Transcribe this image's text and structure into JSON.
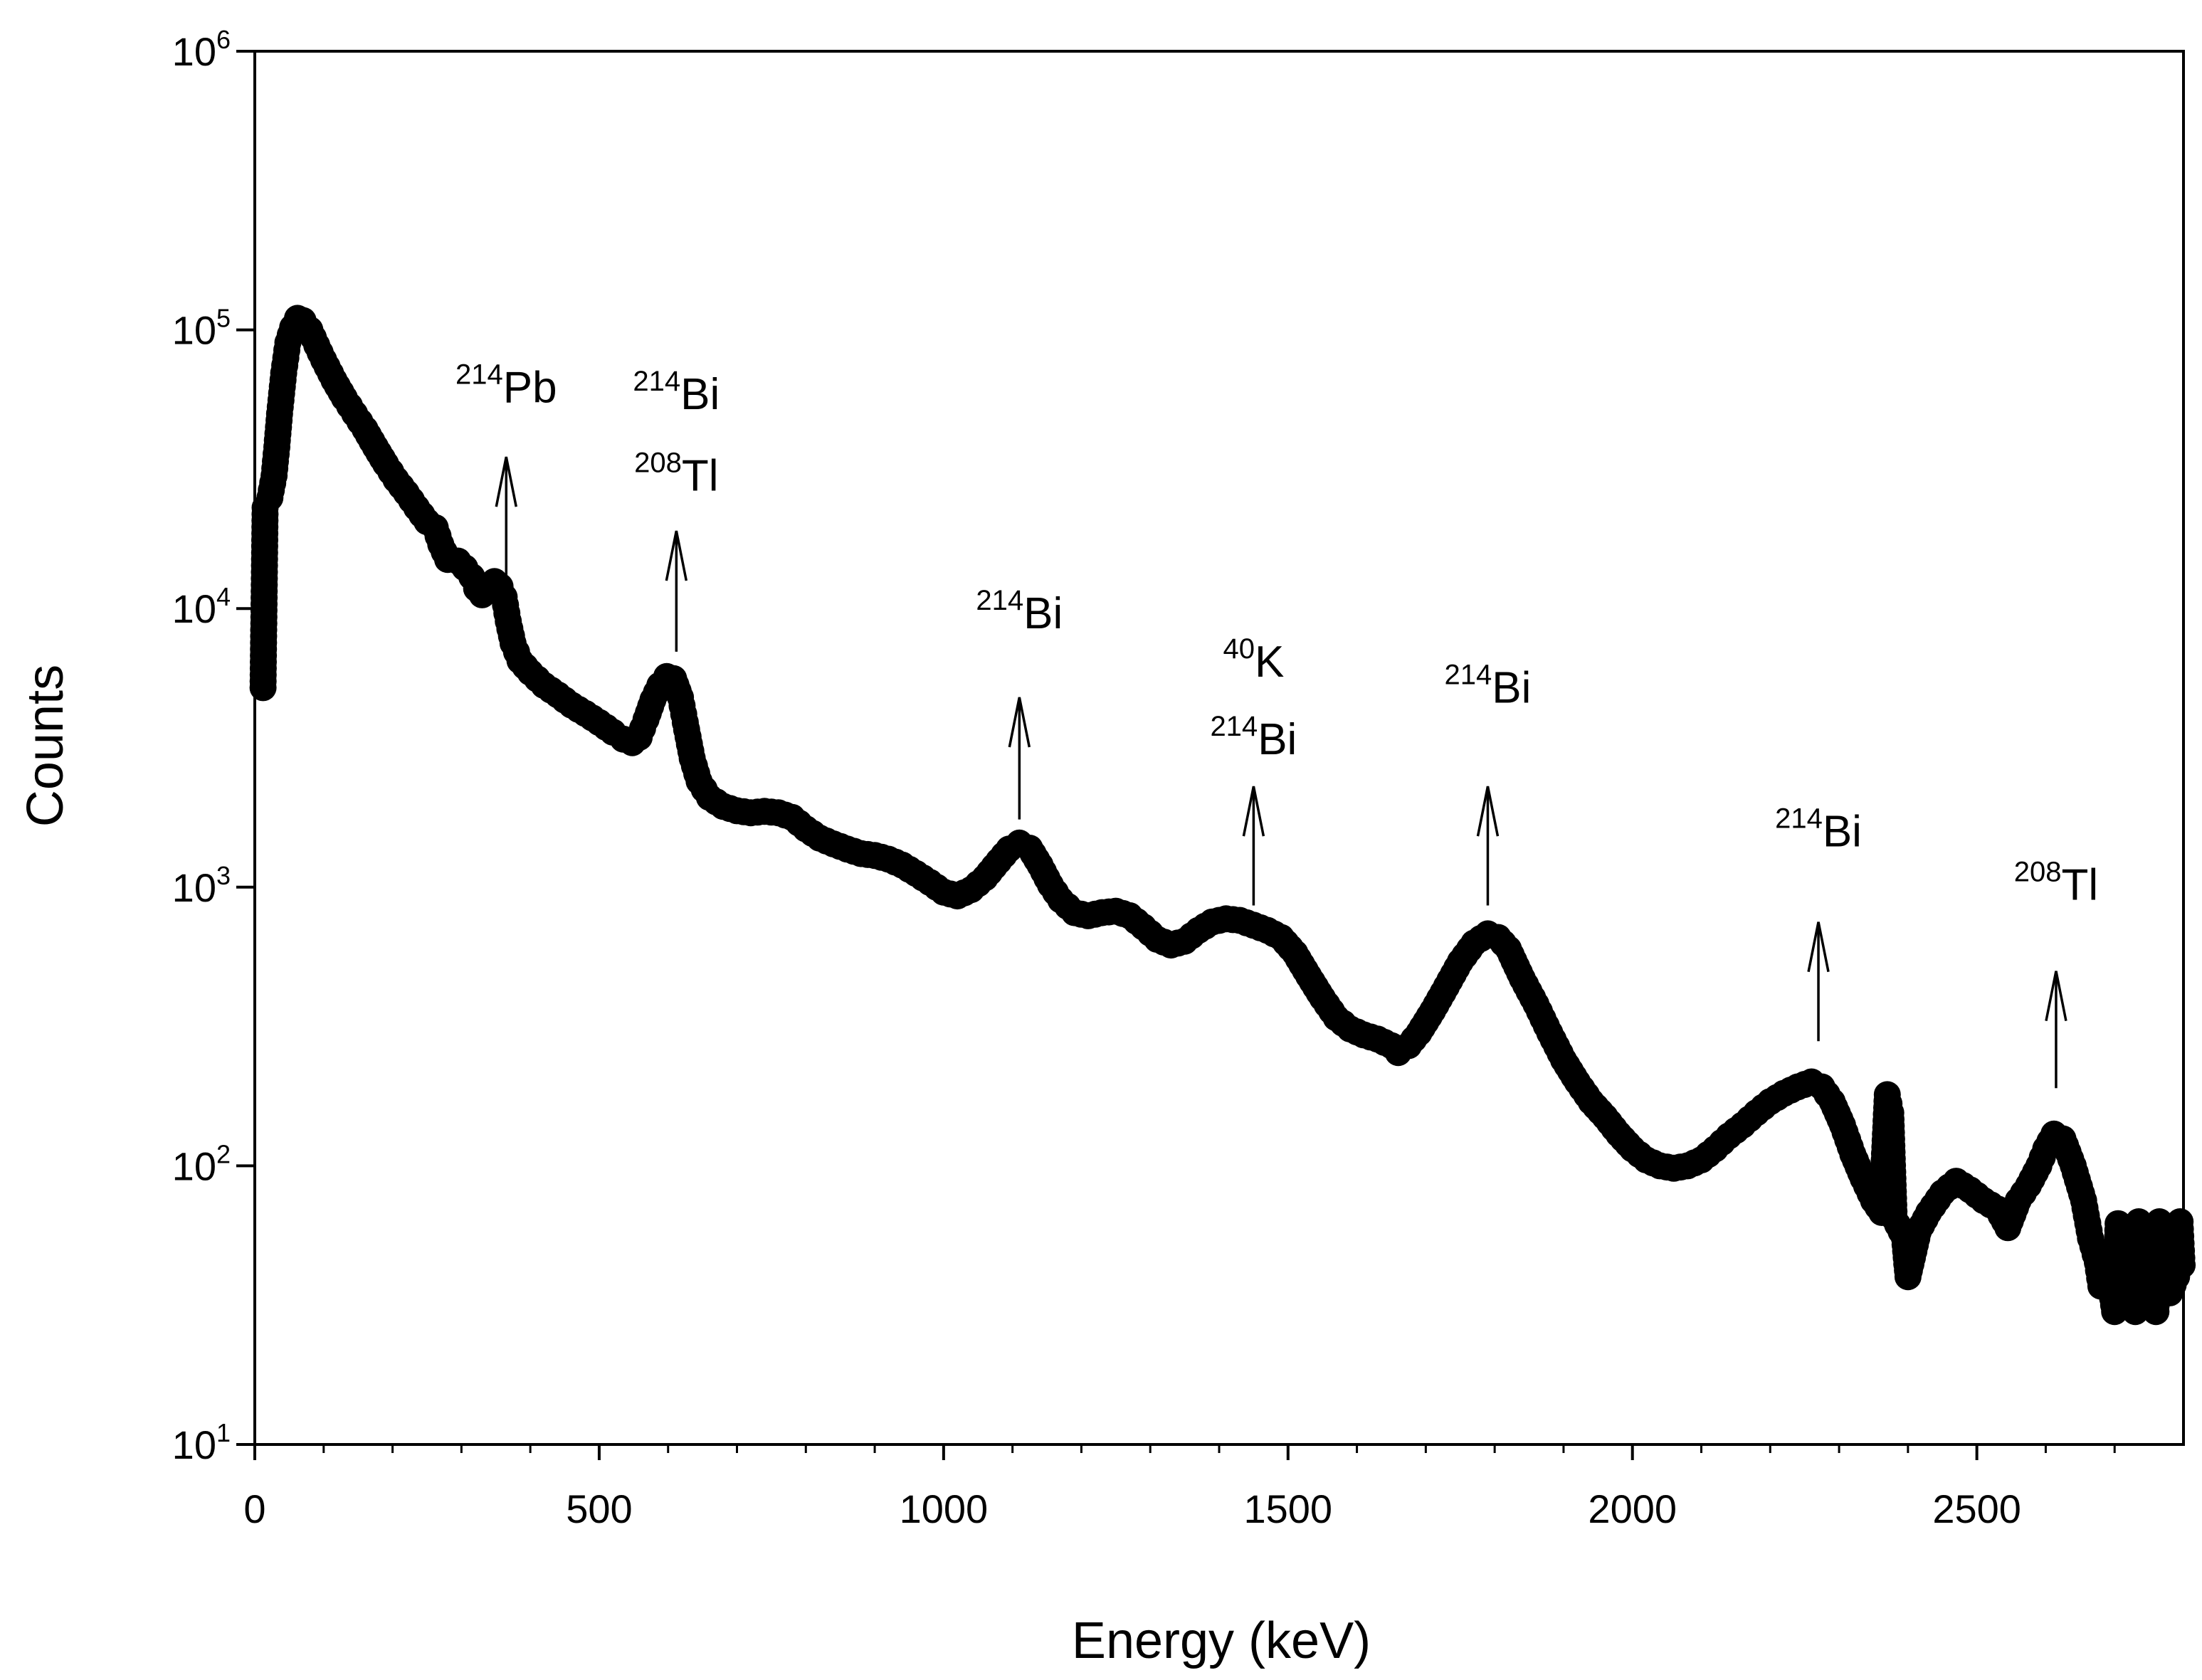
{
  "chart_data": {
    "type": "scatter",
    "title": "",
    "xlabel": "Energy (keV)",
    "ylabel": "Counts",
    "xlim": [
      0,
      2800
    ],
    "ylim": [
      10,
      1000000
    ],
    "yscale": "log",
    "grid": false,
    "marker_color": "#000000",
    "x_ticks": [
      {
        "value": 0,
        "label": "0"
      },
      {
        "value": 500,
        "label": "500"
      },
      {
        "value": 1000,
        "label": "1000"
      },
      {
        "value": 1500,
        "label": "1500"
      },
      {
        "value": 2000,
        "label": "2000"
      },
      {
        "value": 2500,
        "label": "2500"
      }
    ],
    "y_ticks": [
      {
        "value": 10,
        "base": "10",
        "exp": "1"
      },
      {
        "value": 100,
        "base": "10",
        "exp": "2"
      },
      {
        "value": 1000,
        "base": "10",
        "exp": "3"
      },
      {
        "value": 10000,
        "base": "10",
        "exp": "4"
      },
      {
        "value": 100000,
        "base": "10",
        "exp": "5"
      },
      {
        "value": 1000000,
        "base": "10",
        "exp": "6"
      }
    ],
    "spectrum": [
      [
        12,
        5200
      ],
      [
        15,
        23000
      ],
      [
        22,
        25000
      ],
      [
        28,
        30000
      ],
      [
        32,
        38000
      ],
      [
        36,
        50000
      ],
      [
        42,
        70000
      ],
      [
        48,
        90000
      ],
      [
        55,
        102000
      ],
      [
        62,
        110000
      ],
      [
        70,
        108000
      ],
      [
        80,
        100000
      ],
      [
        90,
        88000
      ],
      [
        100,
        78000
      ],
      [
        115,
        66000
      ],
      [
        130,
        57000
      ],
      [
        145,
        50000
      ],
      [
        160,
        44000
      ],
      [
        175,
        38000
      ],
      [
        190,
        33000
      ],
      [
        205,
        29000
      ],
      [
        220,
        26000
      ],
      [
        235,
        23000
      ],
      [
        250,
        20500
      ],
      [
        262,
        19500
      ],
      [
        270,
        17000
      ],
      [
        280,
        15000
      ],
      [
        295,
        14800
      ],
      [
        305,
        14000
      ],
      [
        315,
        13000
      ],
      [
        322,
        11800
      ],
      [
        330,
        11200
      ],
      [
        338,
        12000
      ],
      [
        348,
        12500
      ],
      [
        356,
        12000
      ],
      [
        362,
        11000
      ],
      [
        368,
        9000
      ],
      [
        375,
        7500
      ],
      [
        385,
        6500
      ],
      [
        400,
        5900
      ],
      [
        420,
        5300
      ],
      [
        440,
        4900
      ],
      [
        460,
        4500
      ],
      [
        480,
        4200
      ],
      [
        500,
        3900
      ],
      [
        520,
        3600
      ],
      [
        535,
        3400
      ],
      [
        548,
        3300
      ],
      [
        558,
        3450
      ],
      [
        568,
        4000
      ],
      [
        578,
        4700
      ],
      [
        588,
        5300
      ],
      [
        598,
        5700
      ],
      [
        608,
        5600
      ],
      [
        618,
        4800
      ],
      [
        625,
        3900
      ],
      [
        635,
        2900
      ],
      [
        645,
        2400
      ],
      [
        660,
        2100
      ],
      [
        680,
        1950
      ],
      [
        700,
        1880
      ],
      [
        720,
        1850
      ],
      [
        740,
        1870
      ],
      [
        760,
        1850
      ],
      [
        780,
        1780
      ],
      [
        800,
        1620
      ],
      [
        820,
        1500
      ],
      [
        840,
        1430
      ],
      [
        860,
        1370
      ],
      [
        880,
        1320
      ],
      [
        900,
        1300
      ],
      [
        920,
        1260
      ],
      [
        940,
        1200
      ],
      [
        960,
        1120
      ],
      [
        980,
        1040
      ],
      [
        1000,
        960
      ],
      [
        1020,
        930
      ],
      [
        1040,
        980
      ],
      [
        1060,
        1080
      ],
      [
        1080,
        1240
      ],
      [
        1095,
        1370
      ],
      [
        1110,
        1440
      ],
      [
        1125,
        1380
      ],
      [
        1140,
        1200
      ],
      [
        1155,
        1020
      ],
      [
        1170,
        900
      ],
      [
        1190,
        810
      ],
      [
        1210,
        790
      ],
      [
        1230,
        810
      ],
      [
        1250,
        820
      ],
      [
        1270,
        790
      ],
      [
        1290,
        720
      ],
      [
        1310,
        650
      ],
      [
        1330,
        620
      ],
      [
        1350,
        640
      ],
      [
        1370,
        700
      ],
      [
        1390,
        750
      ],
      [
        1410,
        770
      ],
      [
        1430,
        760
      ],
      [
        1450,
        730
      ],
      [
        1470,
        700
      ],
      [
        1490,
        660
      ],
      [
        1510,
        580
      ],
      [
        1530,
        480
      ],
      [
        1550,
        400
      ],
      [
        1570,
        340
      ],
      [
        1590,
        310
      ],
      [
        1610,
        295
      ],
      [
        1630,
        285
      ],
      [
        1650,
        270
      ],
      [
        1660,
        255
      ],
      [
        1675,
        270
      ],
      [
        1690,
        300
      ],
      [
        1710,
        360
      ],
      [
        1730,
        440
      ],
      [
        1750,
        540
      ],
      [
        1770,
        630
      ],
      [
        1790,
        680
      ],
      [
        1805,
        660
      ],
      [
        1820,
        600
      ],
      [
        1840,
        470
      ],
      [
        1860,
        380
      ],
      [
        1880,
        300
      ],
      [
        1900,
        240
      ],
      [
        1920,
        200
      ],
      [
        1940,
        170
      ],
      [
        1960,
        150
      ],
      [
        1980,
        130
      ],
      [
        2000,
        115
      ],
      [
        2020,
        105
      ],
      [
        2040,
        100
      ],
      [
        2060,
        98
      ],
      [
        2080,
        100
      ],
      [
        2100,
        105
      ],
      [
        2120,
        115
      ],
      [
        2140,
        128
      ],
      [
        2160,
        140
      ],
      [
        2180,
        155
      ],
      [
        2200,
        170
      ],
      [
        2220,
        182
      ],
      [
        2240,
        192
      ],
      [
        2260,
        200
      ],
      [
        2275,
        192
      ],
      [
        2290,
        170
      ],
      [
        2305,
        140
      ],
      [
        2320,
        110
      ],
      [
        2335,
        90
      ],
      [
        2350,
        75
      ],
      [
        2362,
        68
      ],
      [
        2370,
        180
      ],
      [
        2375,
        155
      ],
      [
        2380,
        65
      ],
      [
        2395,
        55
      ],
      [
        2400,
        40
      ],
      [
        2415,
        58
      ],
      [
        2430,
        68
      ],
      [
        2450,
        80
      ],
      [
        2470,
        88
      ],
      [
        2490,
        82
      ],
      [
        2510,
        75
      ],
      [
        2530,
        70
      ],
      [
        2545,
        60
      ],
      [
        2560,
        75
      ],
      [
        2575,
        85
      ],
      [
        2590,
        100
      ],
      [
        2600,
        115
      ],
      [
        2612,
        130
      ],
      [
        2625,
        125
      ],
      [
        2640,
        100
      ],
      [
        2655,
        75
      ],
      [
        2665,
        55
      ],
      [
        2675,
        45
      ],
      [
        2680,
        37
      ],
      [
        2690,
        44
      ],
      [
        2700,
        30
      ],
      [
        2705,
        62
      ],
      [
        2710,
        48
      ],
      [
        2720,
        36
      ],
      [
        2730,
        30
      ],
      [
        2735,
        63
      ],
      [
        2740,
        47
      ],
      [
        2750,
        35
      ],
      [
        2760,
        30
      ],
      [
        2765,
        63
      ],
      [
        2770,
        46
      ],
      [
        2780,
        35
      ],
      [
        2790,
        40
      ],
      [
        2795,
        63
      ],
      [
        2798,
        44
      ]
    ],
    "annotations": [
      {
        "x": 365,
        "arrow_from": 12500,
        "arrow_to": 35000,
        "labels": [
          {
            "mass": "214",
            "element": "Pb",
            "y": 55000
          }
        ]
      },
      {
        "x": 612,
        "arrow_from": 7000,
        "arrow_to": 19000,
        "labels": [
          {
            "mass": "214",
            "element": "Bi",
            "y": 52000
          },
          {
            "mass": "208",
            "element": "Tl",
            "y": 26500
          }
        ]
      },
      {
        "x": 1110,
        "arrow_from": 1750,
        "arrow_to": 4800,
        "labels": [
          {
            "mass": "214",
            "element": "Bi",
            "y": 8500
          }
        ]
      },
      {
        "x": 1450,
        "arrow_from": 860,
        "arrow_to": 2300,
        "labels": [
          {
            "mass": "40",
            "element": "K",
            "y": 5700
          },
          {
            "mass": "214",
            "element": "Bi",
            "y": 3000
          }
        ]
      },
      {
        "x": 1790,
        "arrow_from": 860,
        "arrow_to": 2300,
        "labels": [
          {
            "mass": "214",
            "element": "Bi",
            "y": 4600
          }
        ]
      },
      {
        "x": 2270,
        "arrow_from": 280,
        "arrow_to": 750,
        "labels": [
          {
            "mass": "214",
            "element": "Bi",
            "y": 1400
          }
        ]
      },
      {
        "x": 2615,
        "arrow_from": 190,
        "arrow_to": 500,
        "labels": [
          {
            "mass": "208",
            "element": "Tl",
            "y": 900
          }
        ]
      }
    ]
  }
}
